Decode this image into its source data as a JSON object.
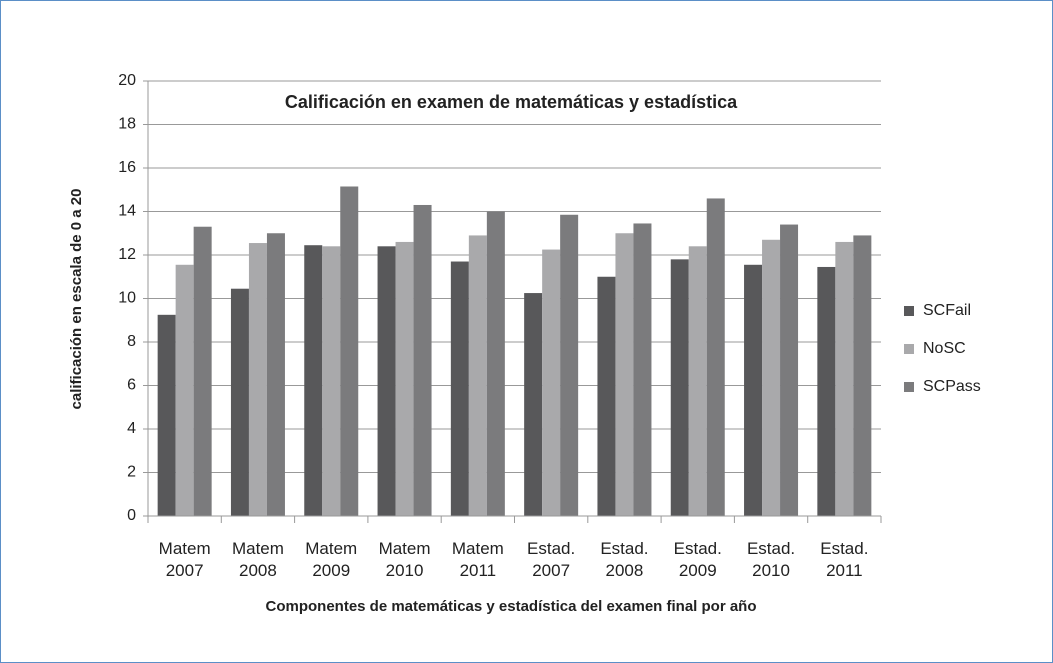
{
  "chart_data": {
    "type": "bar",
    "title": "Calificación en examen de matemáticas y estadística",
    "x_label": "Componentes de matemáticas y estadística del examen final por año",
    "y_label": "calificación en escala de 0 a 20",
    "categories": [
      "Matem 2007",
      "Matem 2008",
      "Matem 2009",
      "Matem 2010",
      "Matem 2011",
      "Estad. 2007",
      "Estad. 2008",
      "Estad. 2009",
      "Estad. 2010",
      "Estad. 2011"
    ],
    "series": [
      {
        "name": "SCFail",
        "color": "#58585a",
        "values": [
          9.25,
          10.45,
          12.45,
          12.4,
          11.7,
          10.25,
          11.0,
          11.8,
          11.55,
          11.45
        ]
      },
      {
        "name": "NoSC",
        "color": "#a9a9ab",
        "values": [
          11.55,
          12.55,
          12.4,
          12.6,
          12.9,
          12.25,
          13.0,
          12.4,
          12.7,
          12.6
        ]
      },
      {
        "name": "SCPass",
        "color": "#7b7b7d",
        "values": [
          13.3,
          13.0,
          15.15,
          14.3,
          14.0,
          13.85,
          13.45,
          14.6,
          13.4,
          12.9
        ]
      }
    ],
    "ylim": [
      0,
      20
    ],
    "yticks": [
      0,
      2,
      4,
      6,
      8,
      10,
      12,
      14,
      16,
      18,
      20
    ],
    "grid": true,
    "legend": "right"
  }
}
